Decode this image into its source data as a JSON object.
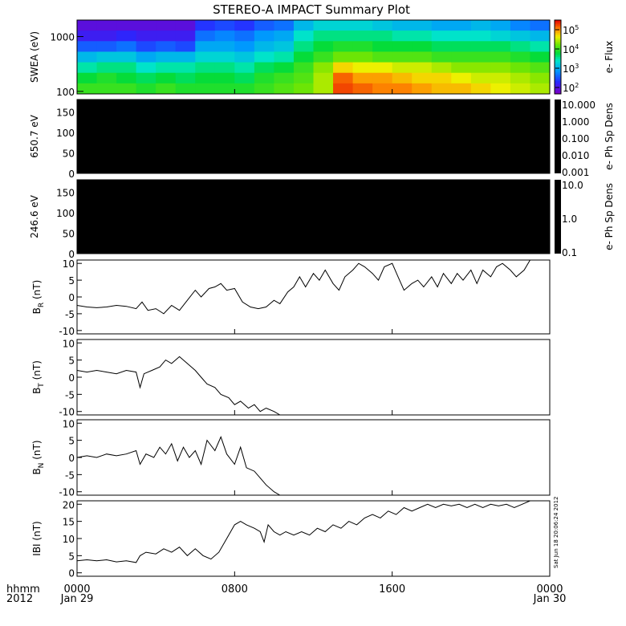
{
  "chart_data": {
    "title": "STEREO-A IMPACT Summary Plot",
    "x_axis": {
      "range_hours": [
        0,
        24
      ],
      "ticks": [
        {
          "hour": 0,
          "time": "0000",
          "date": "Jan 29"
        },
        {
          "hour": 8,
          "time": "0800",
          "date": ""
        },
        {
          "hour": 16,
          "time": "1600",
          "date": ""
        },
        {
          "hour": 24,
          "time": "0000",
          "date": "Jan 30"
        }
      ],
      "left_label_top": "hhmm",
      "left_label_bottom": "2012"
    },
    "side_note": "Sat Jun 18 20:06:24 2012",
    "panels": [
      {
        "id": "swea",
        "type": "heatmap",
        "ylabel": "SWEA (eV)",
        "yscale": "log",
        "ylim": [
          90,
          2000
        ],
        "yticks": [
          "1000",
          "100"
        ],
        "colorbar_label": "e- Flux",
        "colorbar_ticks": [
          "10^5",
          "10^4",
          "10^3",
          "10^2"
        ],
        "colorbar_range_log10": [
          2,
          5.6
        ],
        "description_rows": "log10 flux by time (hour) and energy band"
      },
      {
        "id": "pad650",
        "type": "heatmap",
        "ylabel": "650.7 eV",
        "ylim": [
          0,
          180
        ],
        "yticks": [
          "0",
          "50",
          "100",
          "150"
        ],
        "fill": "#000000",
        "colorbar_label": "e- Ph Sp Dens",
        "colorbar_ticks": [
          "10.000",
          "1.000",
          "0.100",
          "0.010",
          "0.001"
        ]
      },
      {
        "id": "pad246",
        "type": "heatmap",
        "ylabel": "246.6 eV",
        "ylim": [
          0,
          180
        ],
        "yticks": [
          "0",
          "50",
          "100",
          "150"
        ],
        "fill": "#000000",
        "colorbar_label": "e- Ph Sp Dens",
        "colorbar_ticks": [
          "10.0",
          "1.0",
          "0.1"
        ]
      },
      {
        "id": "br",
        "type": "line",
        "ylabel_main": "B",
        "ylabel_sub": "R",
        "ylabel_unit": "(nT)",
        "ylim": [
          -11,
          11
        ],
        "yticks": [
          10,
          5,
          0,
          -5,
          -10
        ]
      },
      {
        "id": "bt",
        "type": "line",
        "ylabel_main": "B",
        "ylabel_sub": "T",
        "ylabel_unit": "(nT)",
        "ylim": [
          -11,
          11
        ],
        "yticks": [
          10,
          5,
          0,
          -5,
          -10
        ]
      },
      {
        "id": "bn",
        "type": "line",
        "ylabel_main": "B",
        "ylabel_sub": "N",
        "ylabel_unit": "(nT)",
        "ylim": [
          -11,
          11
        ],
        "yticks": [
          10,
          5,
          0,
          -5,
          -10
        ]
      },
      {
        "id": "bmag",
        "type": "line",
        "ylabel_main": "IBI",
        "ylabel_sub": "",
        "ylabel_unit": "(nT)",
        "ylim": [
          -1,
          21
        ],
        "yticks": [
          20,
          15,
          10,
          5,
          0
        ]
      }
    ],
    "swea_flux_log10": {
      "hours": [
        0,
        1,
        2,
        3,
        4,
        5,
        6,
        7,
        8,
        9,
        10,
        11,
        12,
        13,
        14,
        15,
        16,
        17,
        18,
        19,
        20,
        21,
        22,
        23,
        24
      ],
      "energies_eV": [
        2000,
        1200,
        700,
        400,
        250,
        150,
        100
      ],
      "values": [
        [
          2.2,
          2.4,
          2.8,
          3.3,
          3.7,
          4.0,
          4.2
        ],
        [
          2.2,
          2.4,
          2.8,
          3.4,
          3.8,
          4.1,
          4.2
        ],
        [
          2.2,
          2.5,
          2.9,
          3.4,
          3.8,
          4.0,
          4.2
        ],
        [
          2.2,
          2.4,
          2.7,
          3.2,
          3.6,
          3.9,
          4.1
        ],
        [
          2.2,
          2.4,
          2.8,
          3.3,
          3.7,
          4.0,
          4.2
        ],
        [
          2.2,
          2.4,
          2.7,
          3.3,
          3.7,
          3.9,
          4.1
        ],
        [
          2.6,
          2.9,
          3.2,
          3.5,
          3.8,
          4.0,
          4.1
        ],
        [
          2.7,
          3.0,
          3.2,
          3.5,
          3.8,
          4.0,
          4.1
        ],
        [
          2.6,
          2.9,
          3.1,
          3.4,
          3.7,
          3.9,
          4.1
        ],
        [
          2.8,
          3.1,
          3.3,
          3.6,
          3.9,
          4.1,
          4.2
        ],
        [
          2.9,
          3.2,
          3.4,
          3.7,
          4.0,
          4.2,
          4.3
        ],
        [
          3.3,
          3.6,
          3.8,
          4.0,
          4.2,
          4.3,
          4.4
        ],
        [
          3.5,
          3.8,
          4.0,
          4.2,
          4.5,
          4.6,
          4.6
        ],
        [
          3.5,
          3.8,
          4.1,
          4.4,
          4.9,
          5.3,
          5.4
        ],
        [
          3.5,
          3.8,
          4.1,
          4.4,
          4.8,
          5.1,
          5.3
        ],
        [
          3.4,
          3.8,
          4.0,
          4.3,
          4.8,
          5.1,
          5.2
        ],
        [
          3.3,
          3.7,
          4.0,
          4.3,
          4.7,
          5.0,
          5.2
        ],
        [
          3.3,
          3.7,
          4.0,
          4.3,
          4.7,
          4.9,
          5.1
        ],
        [
          3.2,
          3.6,
          3.9,
          4.2,
          4.6,
          4.9,
          5.0
        ],
        [
          3.2,
          3.6,
          3.9,
          4.2,
          4.5,
          4.8,
          5.0
        ],
        [
          3.3,
          3.6,
          3.9,
          4.2,
          4.5,
          4.7,
          4.9
        ],
        [
          3.2,
          3.5,
          3.9,
          4.2,
          4.5,
          4.7,
          4.8
        ],
        [
          3.0,
          3.4,
          3.8,
          4.1,
          4.4,
          4.6,
          4.7
        ],
        [
          2.9,
          3.3,
          3.7,
          4.0,
          4.3,
          4.5,
          4.6
        ],
        [
          2.9,
          3.3,
          3.7,
          4.0,
          4.3,
          4.5,
          4.6
        ]
      ]
    },
    "series": {
      "br": [
        [
          0,
          -2.5
        ],
        [
          0.5,
          -3
        ],
        [
          1,
          -3.2
        ],
        [
          1.5,
          -3
        ],
        [
          2,
          -2.5
        ],
        [
          2.5,
          -2.8
        ],
        [
          3,
          -3.5
        ],
        [
          3.3,
          -1.5
        ],
        [
          3.6,
          -4
        ],
        [
          4,
          -3.5
        ],
        [
          4.4,
          -5
        ],
        [
          4.8,
          -2.5
        ],
        [
          5.2,
          -4
        ],
        [
          5.6,
          -1
        ],
        [
          6,
          2
        ],
        [
          6.3,
          0
        ],
        [
          6.7,
          2.5
        ],
        [
          7,
          3
        ],
        [
          7.3,
          4
        ],
        [
          7.6,
          2
        ],
        [
          8,
          2.5
        ],
        [
          8.4,
          -1.5
        ],
        [
          8.8,
          -3
        ],
        [
          9.2,
          -3.5
        ],
        [
          9.6,
          -3
        ],
        [
          10,
          -1
        ],
        [
          10.3,
          -2
        ],
        [
          10.7,
          1.5
        ],
        [
          11,
          3
        ],
        [
          11.3,
          6
        ],
        [
          11.6,
          3
        ],
        [
          12,
          7
        ],
        [
          12.3,
          5
        ],
        [
          12.6,
          8
        ],
        [
          13,
          4
        ],
        [
          13.3,
          2
        ],
        [
          13.6,
          6
        ],
        [
          14,
          8
        ],
        [
          14.3,
          10
        ],
        [
          14.6,
          9
        ],
        [
          15,
          7
        ],
        [
          15.3,
          5
        ],
        [
          15.6,
          9
        ],
        [
          16,
          10
        ],
        [
          16.3,
          6
        ],
        [
          16.6,
          2
        ],
        [
          17,
          4
        ],
        [
          17.3,
          5
        ],
        [
          17.6,
          3
        ],
        [
          18,
          6
        ],
        [
          18.3,
          3
        ],
        [
          18.6,
          7
        ],
        [
          19,
          4
        ],
        [
          19.3,
          7
        ],
        [
          19.6,
          5
        ],
        [
          20,
          8
        ],
        [
          20.3,
          4
        ],
        [
          20.6,
          8
        ],
        [
          21,
          6
        ],
        [
          21.3,
          9
        ],
        [
          21.6,
          10
        ],
        [
          22,
          8
        ],
        [
          22.3,
          6
        ],
        [
          22.7,
          8
        ],
        [
          23,
          11
        ]
      ],
      "bt": [
        [
          0,
          2
        ],
        [
          0.5,
          1.5
        ],
        [
          1,
          2
        ],
        [
          1.5,
          1.5
        ],
        [
          2,
          1
        ],
        [
          2.5,
          2
        ],
        [
          3,
          1.5
        ],
        [
          3.2,
          -3
        ],
        [
          3.4,
          1
        ],
        [
          3.8,
          2
        ],
        [
          4.2,
          3
        ],
        [
          4.5,
          5
        ],
        [
          4.8,
          4
        ],
        [
          5.2,
          6
        ],
        [
          5.6,
          4
        ],
        [
          6,
          2
        ],
        [
          6.3,
          0
        ],
        [
          6.6,
          -2
        ],
        [
          7,
          -3
        ],
        [
          7.3,
          -5
        ],
        [
          7.7,
          -6
        ],
        [
          8,
          -8
        ],
        [
          8.3,
          -7
        ],
        [
          8.7,
          -9
        ],
        [
          9,
          -8
        ],
        [
          9.3,
          -10
        ],
        [
          9.6,
          -9
        ],
        [
          10,
          -10
        ],
        [
          10.3,
          -11
        ]
      ],
      "bn": [
        [
          0,
          0
        ],
        [
          0.5,
          0.5
        ],
        [
          1,
          0
        ],
        [
          1.5,
          1
        ],
        [
          2,
          0.5
        ],
        [
          2.5,
          1
        ],
        [
          3,
          2
        ],
        [
          3.2,
          -2
        ],
        [
          3.5,
          1
        ],
        [
          3.9,
          0
        ],
        [
          4.2,
          3
        ],
        [
          4.5,
          1
        ],
        [
          4.8,
          4
        ],
        [
          5.1,
          -1
        ],
        [
          5.4,
          3
        ],
        [
          5.7,
          0
        ],
        [
          6,
          2
        ],
        [
          6.3,
          -2
        ],
        [
          6.6,
          5
        ],
        [
          7,
          2
        ],
        [
          7.3,
          6
        ],
        [
          7.6,
          1
        ],
        [
          8,
          -2
        ],
        [
          8.3,
          3
        ],
        [
          8.6,
          -3
        ],
        [
          9,
          -4
        ],
        [
          9.3,
          -6
        ],
        [
          9.6,
          -8
        ],
        [
          10,
          -10
        ],
        [
          10.3,
          -11
        ]
      ],
      "bmag": [
        [
          0,
          3.5
        ],
        [
          0.5,
          3.8
        ],
        [
          1,
          3.5
        ],
        [
          1.5,
          3.8
        ],
        [
          2,
          3.2
        ],
        [
          2.5,
          3.5
        ],
        [
          3,
          3
        ],
        [
          3.2,
          5
        ],
        [
          3.5,
          6
        ],
        [
          4,
          5.5
        ],
        [
          4.4,
          7
        ],
        [
          4.8,
          6
        ],
        [
          5.2,
          7.5
        ],
        [
          5.6,
          5
        ],
        [
          6,
          7
        ],
        [
          6.4,
          5
        ],
        [
          6.8,
          4
        ],
        [
          7.2,
          6
        ],
        [
          7.5,
          9
        ],
        [
          7.8,
          12
        ],
        [
          8,
          14
        ],
        [
          8.3,
          15
        ],
        [
          8.6,
          14
        ],
        [
          9,
          13
        ],
        [
          9.3,
          12
        ],
        [
          9.5,
          9
        ],
        [
          9.7,
          14
        ],
        [
          10,
          12
        ],
        [
          10.3,
          11
        ],
        [
          10.6,
          12
        ],
        [
          11,
          11
        ],
        [
          11.4,
          12
        ],
        [
          11.8,
          11
        ],
        [
          12.2,
          13
        ],
        [
          12.6,
          12
        ],
        [
          13,
          14
        ],
        [
          13.4,
          13
        ],
        [
          13.8,
          15
        ],
        [
          14.2,
          14
        ],
        [
          14.6,
          16
        ],
        [
          15,
          17
        ],
        [
          15.4,
          16
        ],
        [
          15.8,
          18
        ],
        [
          16.2,
          17
        ],
        [
          16.6,
          19
        ],
        [
          17,
          18
        ],
        [
          17.4,
          19
        ],
        [
          17.8,
          20
        ],
        [
          18.2,
          19
        ],
        [
          18.6,
          20
        ],
        [
          19,
          19.5
        ],
        [
          19.4,
          20
        ],
        [
          19.8,
          19
        ],
        [
          20.2,
          20
        ],
        [
          20.6,
          19
        ],
        [
          21,
          20
        ],
        [
          21.4,
          19.5
        ],
        [
          21.8,
          20
        ],
        [
          22.2,
          19
        ],
        [
          22.6,
          20
        ],
        [
          23,
          21
        ]
      ]
    }
  }
}
